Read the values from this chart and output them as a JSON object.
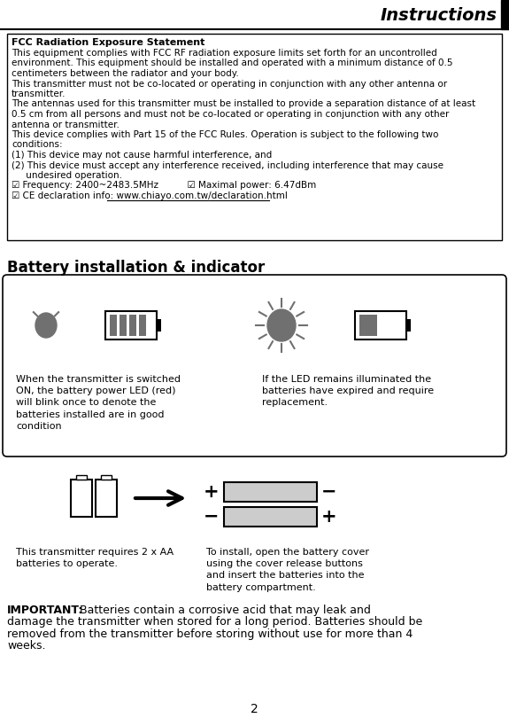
{
  "title": "Instructions",
  "page_number": "2",
  "fcc_title": "FCC Radiation Exposure Statement",
  "fcc_lines": [
    "This equipment complies with FCC RF radiation exposure limits set forth for an uncontrolled",
    "environment. This equipment should be installed and operated with a minimum distance of 0.5",
    "centimeters between the radiator and your body.",
    "This transmitter must not be co-located or operating in conjunction with any other antenna or",
    "transmitter.",
    "The antennas used for this transmitter must be installed to provide a separation distance of at least",
    "0.5 cm from all persons and must not be co-located or operating in conjunction with any other",
    "antenna or transmitter.",
    "This device complies with Part 15 of the FCC Rules. Operation is subject to the following two",
    "conditions:",
    "(1) This device may not cause harmful interference, and",
    "(2) This device must accept any interference received, including interference that may cause",
    "     undesired operation.",
    "☑ Frequency: 2400~2483.5MHz          ☑ Maximal power: 6.47dBm",
    "☑ CE declaration info: www.chiayo.com.tw/declaration.html"
  ],
  "battery_section_title": "Battery installation & indicator",
  "battery_indicator_text_left": "When the transmitter is switched\nON, the battery power LED (red)\nwill blink once to denote the\nbatteries installed are in good\ncondition",
  "battery_indicator_text_right": "If the LED remains illuminated the\nbatteries have expired and require\nreplacement.",
  "battery_install_text_left": "This transmitter requires 2 x AA\nbatteries to operate.",
  "battery_install_text_right": "To install, open the battery cover\nusing the cover release buttons\nand insert the batteries into the\nbattery compartment.",
  "important_lines": [
    "Batteries contain a corrosive acid that may leak and",
    "damage the transmitter when stored for a long period. Batteries should be",
    "removed from the transmitter before storing without use for more than 4",
    "weeks."
  ],
  "bg_color": "#ffffff",
  "text_color": "#000000",
  "gray_color": "#707070",
  "box_bg": "#ffffff",
  "box_border": "#000000"
}
